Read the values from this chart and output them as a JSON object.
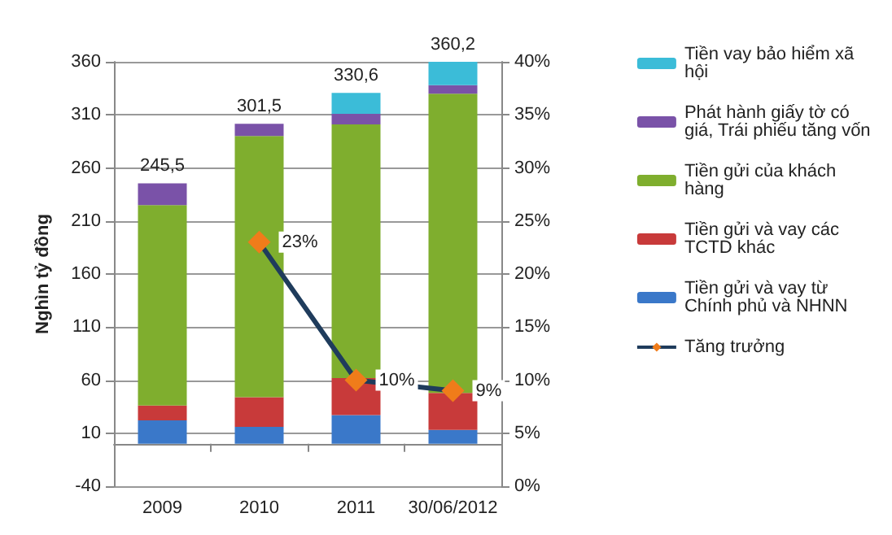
{
  "chart_data": {
    "type": "bar",
    "stacked": true,
    "ylabel": "Nghìn tỷ đồng",
    "categories": [
      "2009",
      "2010",
      "2011",
      "30/06/2012"
    ],
    "series": [
      {
        "name": "Tiền gửi và vay từ Chính phủ và NHNN",
        "color": "#3a78c9",
        "values": [
          22,
          16,
          27,
          13
        ]
      },
      {
        "name": "Tiền gửi và vay các TCTD khác",
        "color": "#c83a3a",
        "values": [
          14,
          28,
          35,
          35
        ]
      },
      {
        "name": "Tiền gửi của khách hàng",
        "color": "#7fae2e",
        "values": [
          189,
          246,
          239,
          282
        ]
      },
      {
        "name": "Phát hành giấy tờ có giá, Trái phiếu tăng vốn",
        "color": "#7a52a8",
        "values": [
          20.5,
          11.5,
          10,
          8
        ]
      },
      {
        "name": "Tiền vay bảo hiểm xã hội",
        "color": "#3bbcd8",
        "values": [
          0,
          0,
          19.6,
          22.2
        ]
      },
      {
        "name": "Tăng trưởng",
        "type": "line",
        "axis": "y2",
        "color": "#1f3c5c",
        "colors": [
          "#f07c1a",
          "#f07c1a",
          "#f07c1a",
          "#f07c1a"
        ],
        "marker": "diamond",
        "values": [
          null,
          23,
          10,
          9
        ],
        "value_labels": [
          null,
          "23%",
          "10%",
          "9%"
        ]
      }
    ],
    "totals": [
      "245,5",
      "301,5",
      "330,6",
      "360,2"
    ],
    "ylim": [
      -40,
      360
    ],
    "yticks": [
      -40,
      10,
      60,
      110,
      160,
      210,
      260,
      310,
      360
    ],
    "y2lim": [
      0,
      40
    ],
    "y2ticks": [
      {
        "value": 0,
        "label": "0%"
      },
      {
        "value": 5,
        "label": "5%"
      },
      {
        "value": 10,
        "label": "10%"
      },
      {
        "value": 15,
        "label": "15%"
      },
      {
        "value": 20,
        "label": "20%"
      },
      {
        "value": 25,
        "label": "25%"
      },
      {
        "value": 30,
        "label": "30%"
      },
      {
        "value": 35,
        "label": "35%"
      },
      {
        "value": 40,
        "label": "40%"
      }
    ],
    "grid": "y",
    "legend": "right"
  }
}
